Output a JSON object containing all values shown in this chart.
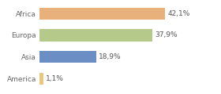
{
  "categories": [
    "Africa",
    "Europa",
    "Asia",
    "America"
  ],
  "values": [
    42.1,
    37.9,
    18.9,
    1.1
  ],
  "labels": [
    "42,1%",
    "37,9%",
    "18,9%",
    "1,1%"
  ],
  "bar_colors": [
    "#e8b07a",
    "#b5c98a",
    "#6b8ec4",
    "#e8c97a"
  ],
  "background_color": "#ffffff",
  "xlim": [
    0,
    52
  ],
  "label_fontsize": 6.5,
  "tick_fontsize": 6.5,
  "bar_height": 0.55
}
